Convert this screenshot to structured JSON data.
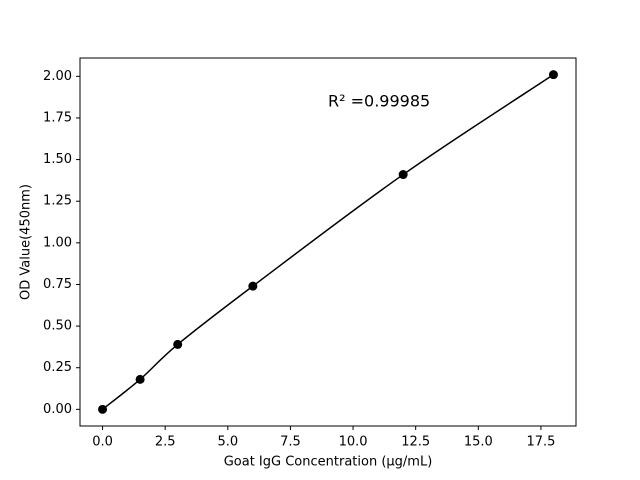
{
  "chart_data": {
    "type": "line",
    "x_label": "Goat IgG Concentration (µg/mL)",
    "y_label": "OD Value(450nm)",
    "annotation": "R² =0.99985",
    "x": [
      0,
      1.5,
      3,
      6,
      12,
      18
    ],
    "series": [
      {
        "color": "#000000",
        "values": [
          0,
          0.18,
          0.39,
          0.74,
          1.41,
          2.01
        ]
      }
    ],
    "xlim": [
      -0.9,
      18.9
    ],
    "xticks": [
      {
        "value": 0,
        "label": "0.0"
      },
      {
        "value": 2.5,
        "label": "2.5"
      },
      {
        "value": 5,
        "label": "5.0"
      },
      {
        "value": 7.5,
        "label": "7.5"
      },
      {
        "value": 10,
        "label": "10.0"
      },
      {
        "value": 12.5,
        "label": "12.5"
      },
      {
        "value": 15,
        "label": "15.0"
      },
      {
        "value": 17.5,
        "label": "17.5"
      }
    ],
    "ylim": [
      -0.1,
      2.11
    ],
    "yticks": [
      {
        "value": 0,
        "label": "0.00"
      },
      {
        "value": 0.25,
        "label": "0.25"
      },
      {
        "value": 0.5,
        "label": "0.50"
      },
      {
        "value": 0.75,
        "label": "0.75"
      },
      {
        "value": 1,
        "label": "1.00"
      },
      {
        "value": 1.25,
        "label": "1.25"
      },
      {
        "value": 1.5,
        "label": "1.50"
      },
      {
        "value": 1.75,
        "label": "1.75"
      },
      {
        "value": 2,
        "label": "2.00"
      }
    ],
    "grid": false
  }
}
